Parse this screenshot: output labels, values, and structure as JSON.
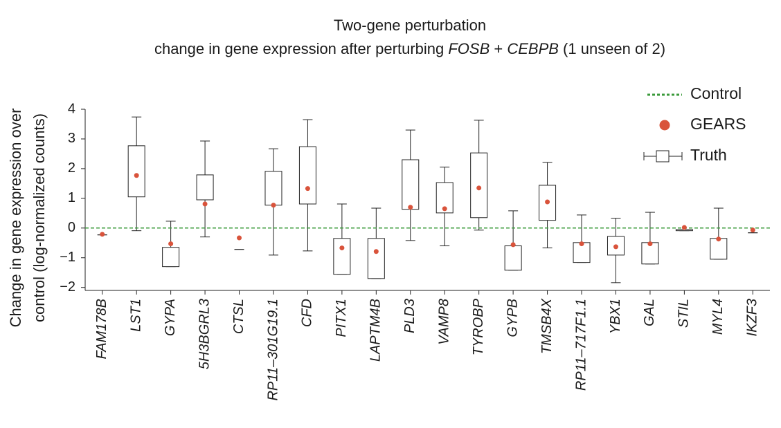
{
  "chart_data": {
    "type": "box",
    "title": "Two-gene perturbation",
    "subtitle": [
      "change in gene expression after perturbing ",
      "FOSB",
      " + ",
      "CEBPB",
      " (1 unseen of 2)"
    ],
    "y_label": [
      "Change in gene expression over",
      "control (log-normalized counts)"
    ],
    "categories": [
      "FAM178B",
      "LST1",
      "GYPA",
      "5H3BGRL3",
      "CTSL",
      "RP11–301G19.1",
      "CFD",
      "PITX1",
      "LAPTM4B",
      "PLD3",
      "VAMP8",
      "TYROBP",
      "GYPB",
      "TMSB4X",
      "RP11–717F1.1",
      "YBX1",
      "GAL",
      "STIL",
      "MYL4",
      "IKZF3"
    ],
    "truth": {
      "name": "Truth",
      "color": "#222222",
      "whislo": [
        -0.23,
        -0.09,
        -1.3,
        -0.3,
        -0.72,
        -0.91,
        -0.77,
        -1.56,
        -1.7,
        -0.42,
        -0.6,
        -0.07,
        -1.42,
        -0.67,
        -1.16,
        -1.84,
        -1.21,
        -0.09,
        -1.05,
        -0.16
      ],
      "q1": [
        -0.23,
        1.05,
        -1.3,
        0.95,
        -0.72,
        0.77,
        0.81,
        -1.56,
        -1.7,
        0.63,
        0.51,
        0.35,
        -1.42,
        0.26,
        -1.16,
        -0.91,
        -1.21,
        -0.09,
        -1.05,
        -0.16
      ],
      "q3": [
        -0.23,
        2.77,
        -0.65,
        1.79,
        -0.72,
        1.91,
        2.74,
        -0.35,
        -0.35,
        2.3,
        1.53,
        2.53,
        -0.6,
        1.44,
        -0.49,
        -0.28,
        -0.49,
        -0.05,
        -0.35,
        -0.16
      ],
      "whishi": [
        -0.23,
        3.74,
        0.23,
        2.93,
        -0.72,
        2.67,
        3.65,
        0.81,
        0.67,
        3.3,
        2.05,
        3.63,
        0.58,
        2.21,
        0.44,
        0.33,
        0.53,
        -0.05,
        0.67,
        -0.16
      ]
    },
    "gears": {
      "name": "GEARS",
      "color": "#d9533b",
      "values": [
        -0.21,
        1.77,
        -0.53,
        0.81,
        -0.33,
        0.77,
        1.33,
        -0.67,
        -0.79,
        0.7,
        0.65,
        1.35,
        -0.56,
        0.88,
        -0.53,
        -0.63,
        -0.53,
        0.02,
        -0.37,
        -0.07
      ]
    },
    "control": {
      "name": "Control",
      "color": "#3a9a3a",
      "value": 0
    },
    "ylim": [
      -2.1,
      4
    ],
    "yticks": [
      {
        "value": -2,
        "label": "−2"
      },
      {
        "value": -1,
        "label": "−1"
      },
      0,
      1,
      2,
      3,
      4
    ]
  }
}
